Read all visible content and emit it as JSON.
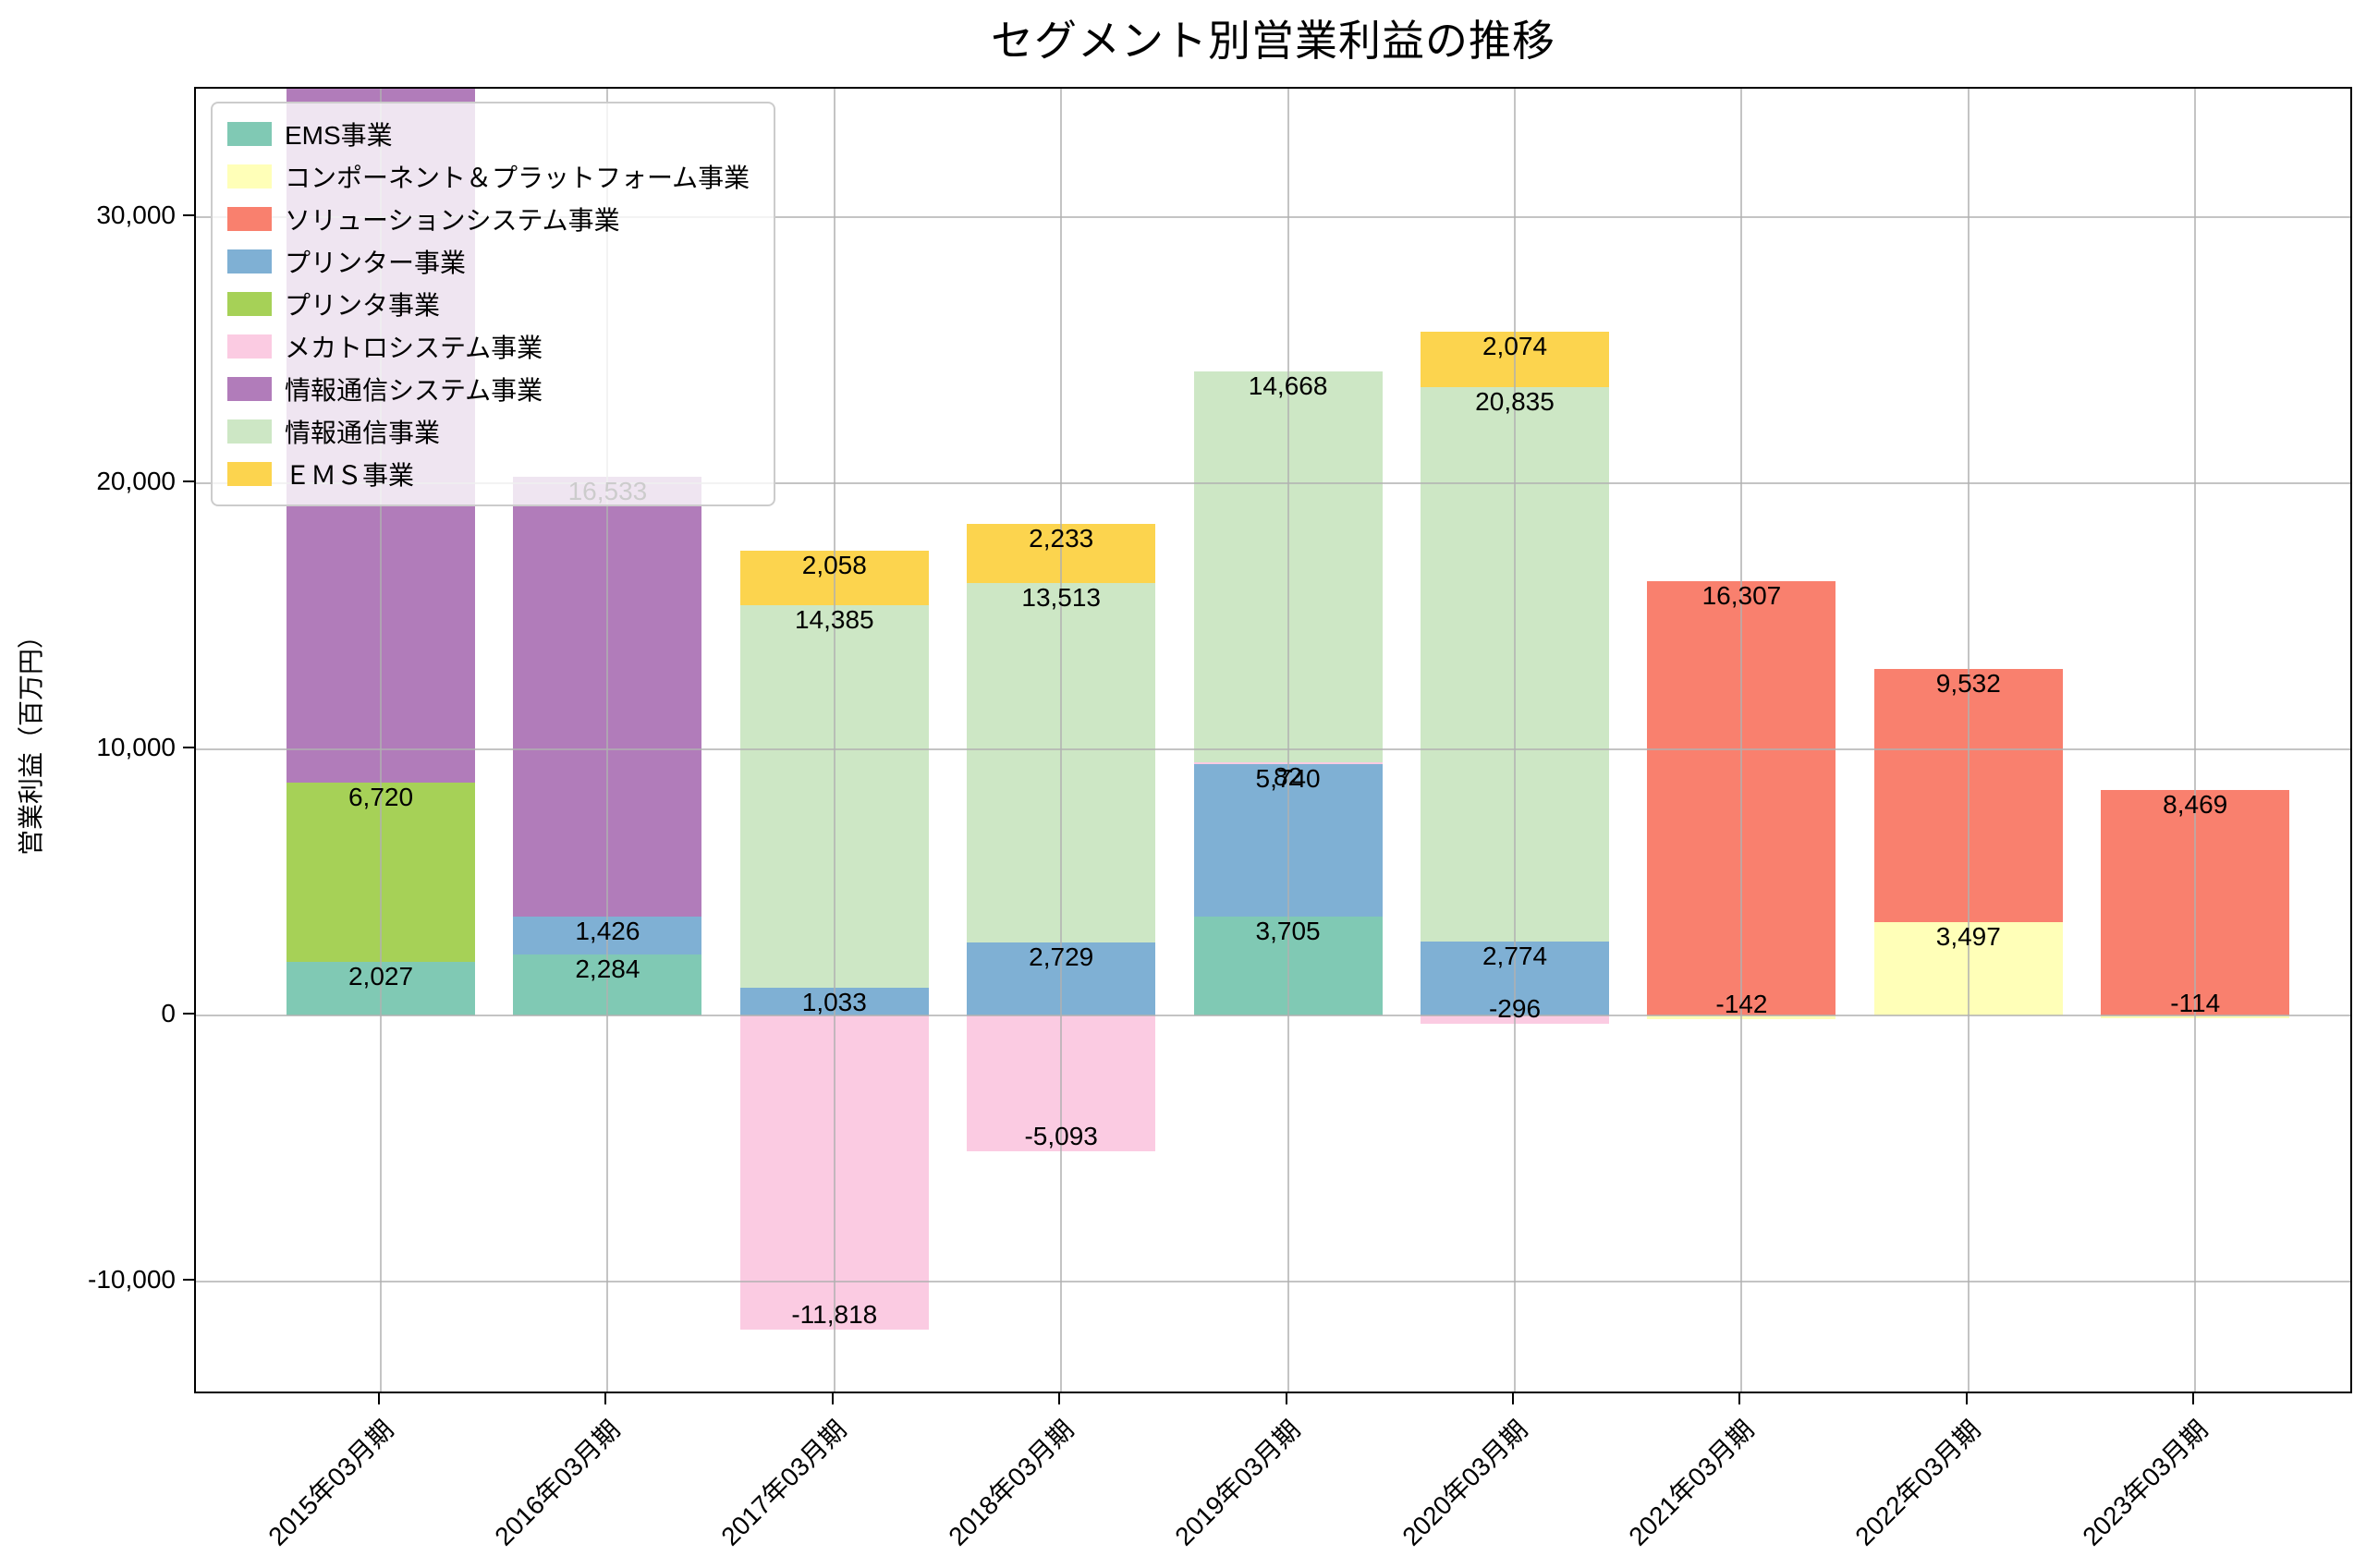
{
  "chart_data": {
    "type": "bar",
    "stacked": true,
    "title": "セグメント別営業利益の推移",
    "xlabel": "",
    "ylabel": "営業利益（百万円）",
    "categories": [
      "2015年03月期",
      "2016年03月期",
      "2017年03月期",
      "2018年03月期",
      "2019年03月期",
      "2020年03月期",
      "2021年03月期",
      "2022年03月期",
      "2023年03月期"
    ],
    "series": [
      {
        "name": "EMS事業",
        "color": "#80c9b4",
        "values": [
          2027,
          2284,
          null,
          null,
          3705,
          null,
          null,
          null,
          null
        ]
      },
      {
        "name": "コンポーネント＆プラットフォーム事業",
        "color": "#ffffb8",
        "values": [
          null,
          null,
          null,
          null,
          null,
          null,
          -142,
          3497,
          -114
        ]
      },
      {
        "name": "ソリューションシステム事業",
        "color": "#f9806e",
        "values": [
          null,
          null,
          null,
          null,
          null,
          null,
          16307,
          9532,
          8469
        ]
      },
      {
        "name": "プリンター事業",
        "color": "#7fb0d4",
        "values": [
          null,
          1426,
          1033,
          2729,
          5740,
          2774,
          null,
          null,
          null
        ]
      },
      {
        "name": "プリンタ事業",
        "color": "#a6d157",
        "values": [
          6720,
          null,
          null,
          null,
          null,
          null,
          null,
          null,
          null
        ]
      },
      {
        "name": "メカトロシステム事業",
        "color": "#fbcbe2",
        "values": [
          null,
          null,
          -11818,
          -5093,
          82,
          -296,
          null,
          null,
          null
        ]
      },
      {
        "name": "情報通信システム事業",
        "color": "#b17cba",
        "values": [
          28000,
          16533,
          null,
          null,
          null,
          null,
          null,
          null,
          null
        ]
      },
      {
        "name": "情報通信事業",
        "color": "#cde7c5",
        "values": [
          null,
          null,
          14385,
          13513,
          14668,
          20835,
          null,
          null,
          null
        ]
      },
      {
        "name": "ＥＭＳ事業",
        "color": "#fcd44e",
        "values": [
          null,
          null,
          2058,
          2233,
          null,
          2074,
          null,
          null,
          null
        ]
      }
    ],
    "yticks": [
      -10000,
      0,
      10000,
      20000,
      30000
    ],
    "ylim": [
      -14270,
      34830
    ],
    "grid": true,
    "legend_position": "upper left"
  }
}
